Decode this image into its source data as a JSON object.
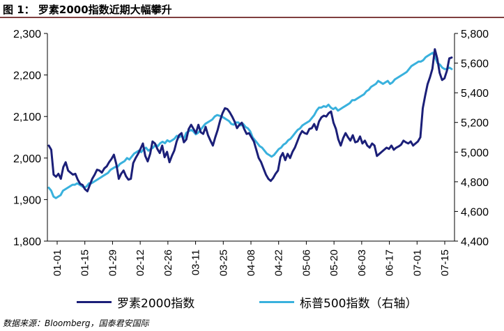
{
  "title": "图 1： 罗素2000指数近期大幅攀升",
  "source": "数据来源：Bloomberg，国泰君安国际",
  "colors": {
    "series1": "#1b1f78",
    "series2": "#39b1dd",
    "axis": "#000000",
    "title_rule": "#7f3f3f"
  },
  "chart_data": {
    "type": "line",
    "title": "罗素2000指数近期大幅攀升",
    "x_tick_labels": [
      "01-01",
      "01-15",
      "01-29",
      "02-12",
      "02-26",
      "03-11",
      "03-25",
      "04-08",
      "04-22",
      "05-06",
      "05-20",
      "06-03",
      "06-17",
      "07-01",
      "07-15"
    ],
    "left_axis": {
      "min": 1800,
      "max": 2300,
      "ticks": [
        "1,800",
        "1,900",
        "2,000",
        "2,100",
        "2,200",
        "2,300"
      ]
    },
    "right_axis": {
      "min": 4400,
      "max": 5800,
      "ticks": [
        "4,400",
        "4,600",
        "4,800",
        "5,000",
        "5,200",
        "5,400",
        "5,600",
        "5,800"
      ]
    },
    "series": [
      {
        "name": "罗素2000指数",
        "axis": "left",
        "values": [
          2030,
          2020,
          1960,
          1955,
          1962,
          1950,
          1978,
          1990,
          1970,
          1965,
          1960,
          1962,
          1948,
          1938,
          1935,
          1925,
          1920,
          1935,
          1950,
          1960,
          1972,
          1970,
          1965,
          1975,
          1980,
          1990,
          1998,
          2008,
          1985,
          1950,
          1962,
          1970,
          1956,
          1948,
          1950,
          1988,
          2000,
          2010,
          2022,
          2035,
          2005,
          1992,
          2010,
          2040,
          2035,
          2022,
          2012,
          2030,
          2002,
          2015,
          1990,
          2005,
          2018,
          2040,
          2055,
          2060,
          2038,
          2045,
          2070,
          2080,
          2070,
          2060,
          2080,
          2062,
          2058,
          2075,
          2055,
          2042,
          2030,
          2050,
          2068,
          2090,
          2108,
          2120,
          2118,
          2110,
          2100,
          2088,
          2072,
          2080,
          2085,
          2070,
          2058,
          2060,
          2050,
          2040,
          2020,
          2000,
          1990,
          1975,
          1960,
          1950,
          1945,
          1952,
          1962,
          1970,
          2002,
          2012,
          1995,
          2010,
          2000,
          2015,
          2025,
          2040,
          2055,
          2065,
          2060,
          2058,
          2070,
          2072,
          2082,
          2068,
          2088,
          2098,
          2102,
          2100,
          2108,
          2112,
          2085,
          2070,
          2045,
          2030,
          2048,
          2060,
          2050,
          2042,
          2055,
          2038,
          2040,
          2052,
          2035,
          2042,
          2030,
          2025,
          2035,
          2030,
          2005,
          2010,
          2015,
          2020,
          2025,
          2022,
          2030,
          2020,
          2025,
          2028,
          2032,
          2042,
          2038,
          2035,
          2040,
          2030,
          2035,
          2040,
          2050,
          2120,
          2150,
          2178,
          2195,
          2215,
          2262,
          2240,
          2205,
          2188,
          2192,
          2210,
          2240,
          2242
        ]
      },
      {
        "name": "标普500指数（右轴）",
        "axis": "right",
        "values": [
          4760,
          4740,
          4700,
          4690,
          4700,
          4710,
          4740,
          4750,
          4760,
          4770,
          4780,
          4780,
          4790,
          4780,
          4770,
          4760,
          4770,
          4790,
          4790,
          4800,
          4810,
          4820,
          4830,
          4840,
          4850,
          4860,
          4880,
          4890,
          4900,
          4900,
          4920,
          4930,
          4940,
          4960,
          4950,
          4970,
          4990,
          5000,
          5010,
          5000,
          5020,
          5030,
          5010,
          5020,
          5030,
          5050,
          5040,
          5060,
          5070,
          5060,
          5080,
          5070,
          5080,
          5090,
          5110,
          5100,
          5110,
          5090,
          5130,
          5140,
          5150,
          5140,
          5120,
          5130,
          5150,
          5170,
          5190,
          5200,
          5210,
          5220,
          5240,
          5250,
          5245,
          5240,
          5230,
          5220,
          5210,
          5190,
          5185,
          5200,
          5200,
          5180,
          5190,
          5170,
          5160,
          5140,
          5100,
          5080,
          5060,
          5040,
          5030,
          5010,
          4990,
          4980,
          4970,
          4980,
          5000,
          5020,
          5030,
          5050,
          5060,
          5080,
          5090,
          5110,
          5130,
          5150,
          5160,
          5180,
          5190,
          5200,
          5210,
          5230,
          5250,
          5280,
          5300,
          5300,
          5310,
          5305,
          5320,
          5300,
          5290,
          5300,
          5280,
          5290,
          5300,
          5310,
          5320,
          5330,
          5350,
          5350,
          5360,
          5370,
          5380,
          5390,
          5410,
          5420,
          5440,
          5450,
          5460,
          5480,
          5470,
          5460,
          5470,
          5480,
          5460,
          5470,
          5490,
          5500,
          5510,
          5520,
          5530,
          5540,
          5560,
          5580,
          5590,
          5600,
          5610,
          5610,
          5620,
          5640,
          5650,
          5660,
          5670,
          5640,
          5600,
          5590,
          5570,
          5560,
          5560,
          5570,
          5560
        ]
      }
    ]
  }
}
